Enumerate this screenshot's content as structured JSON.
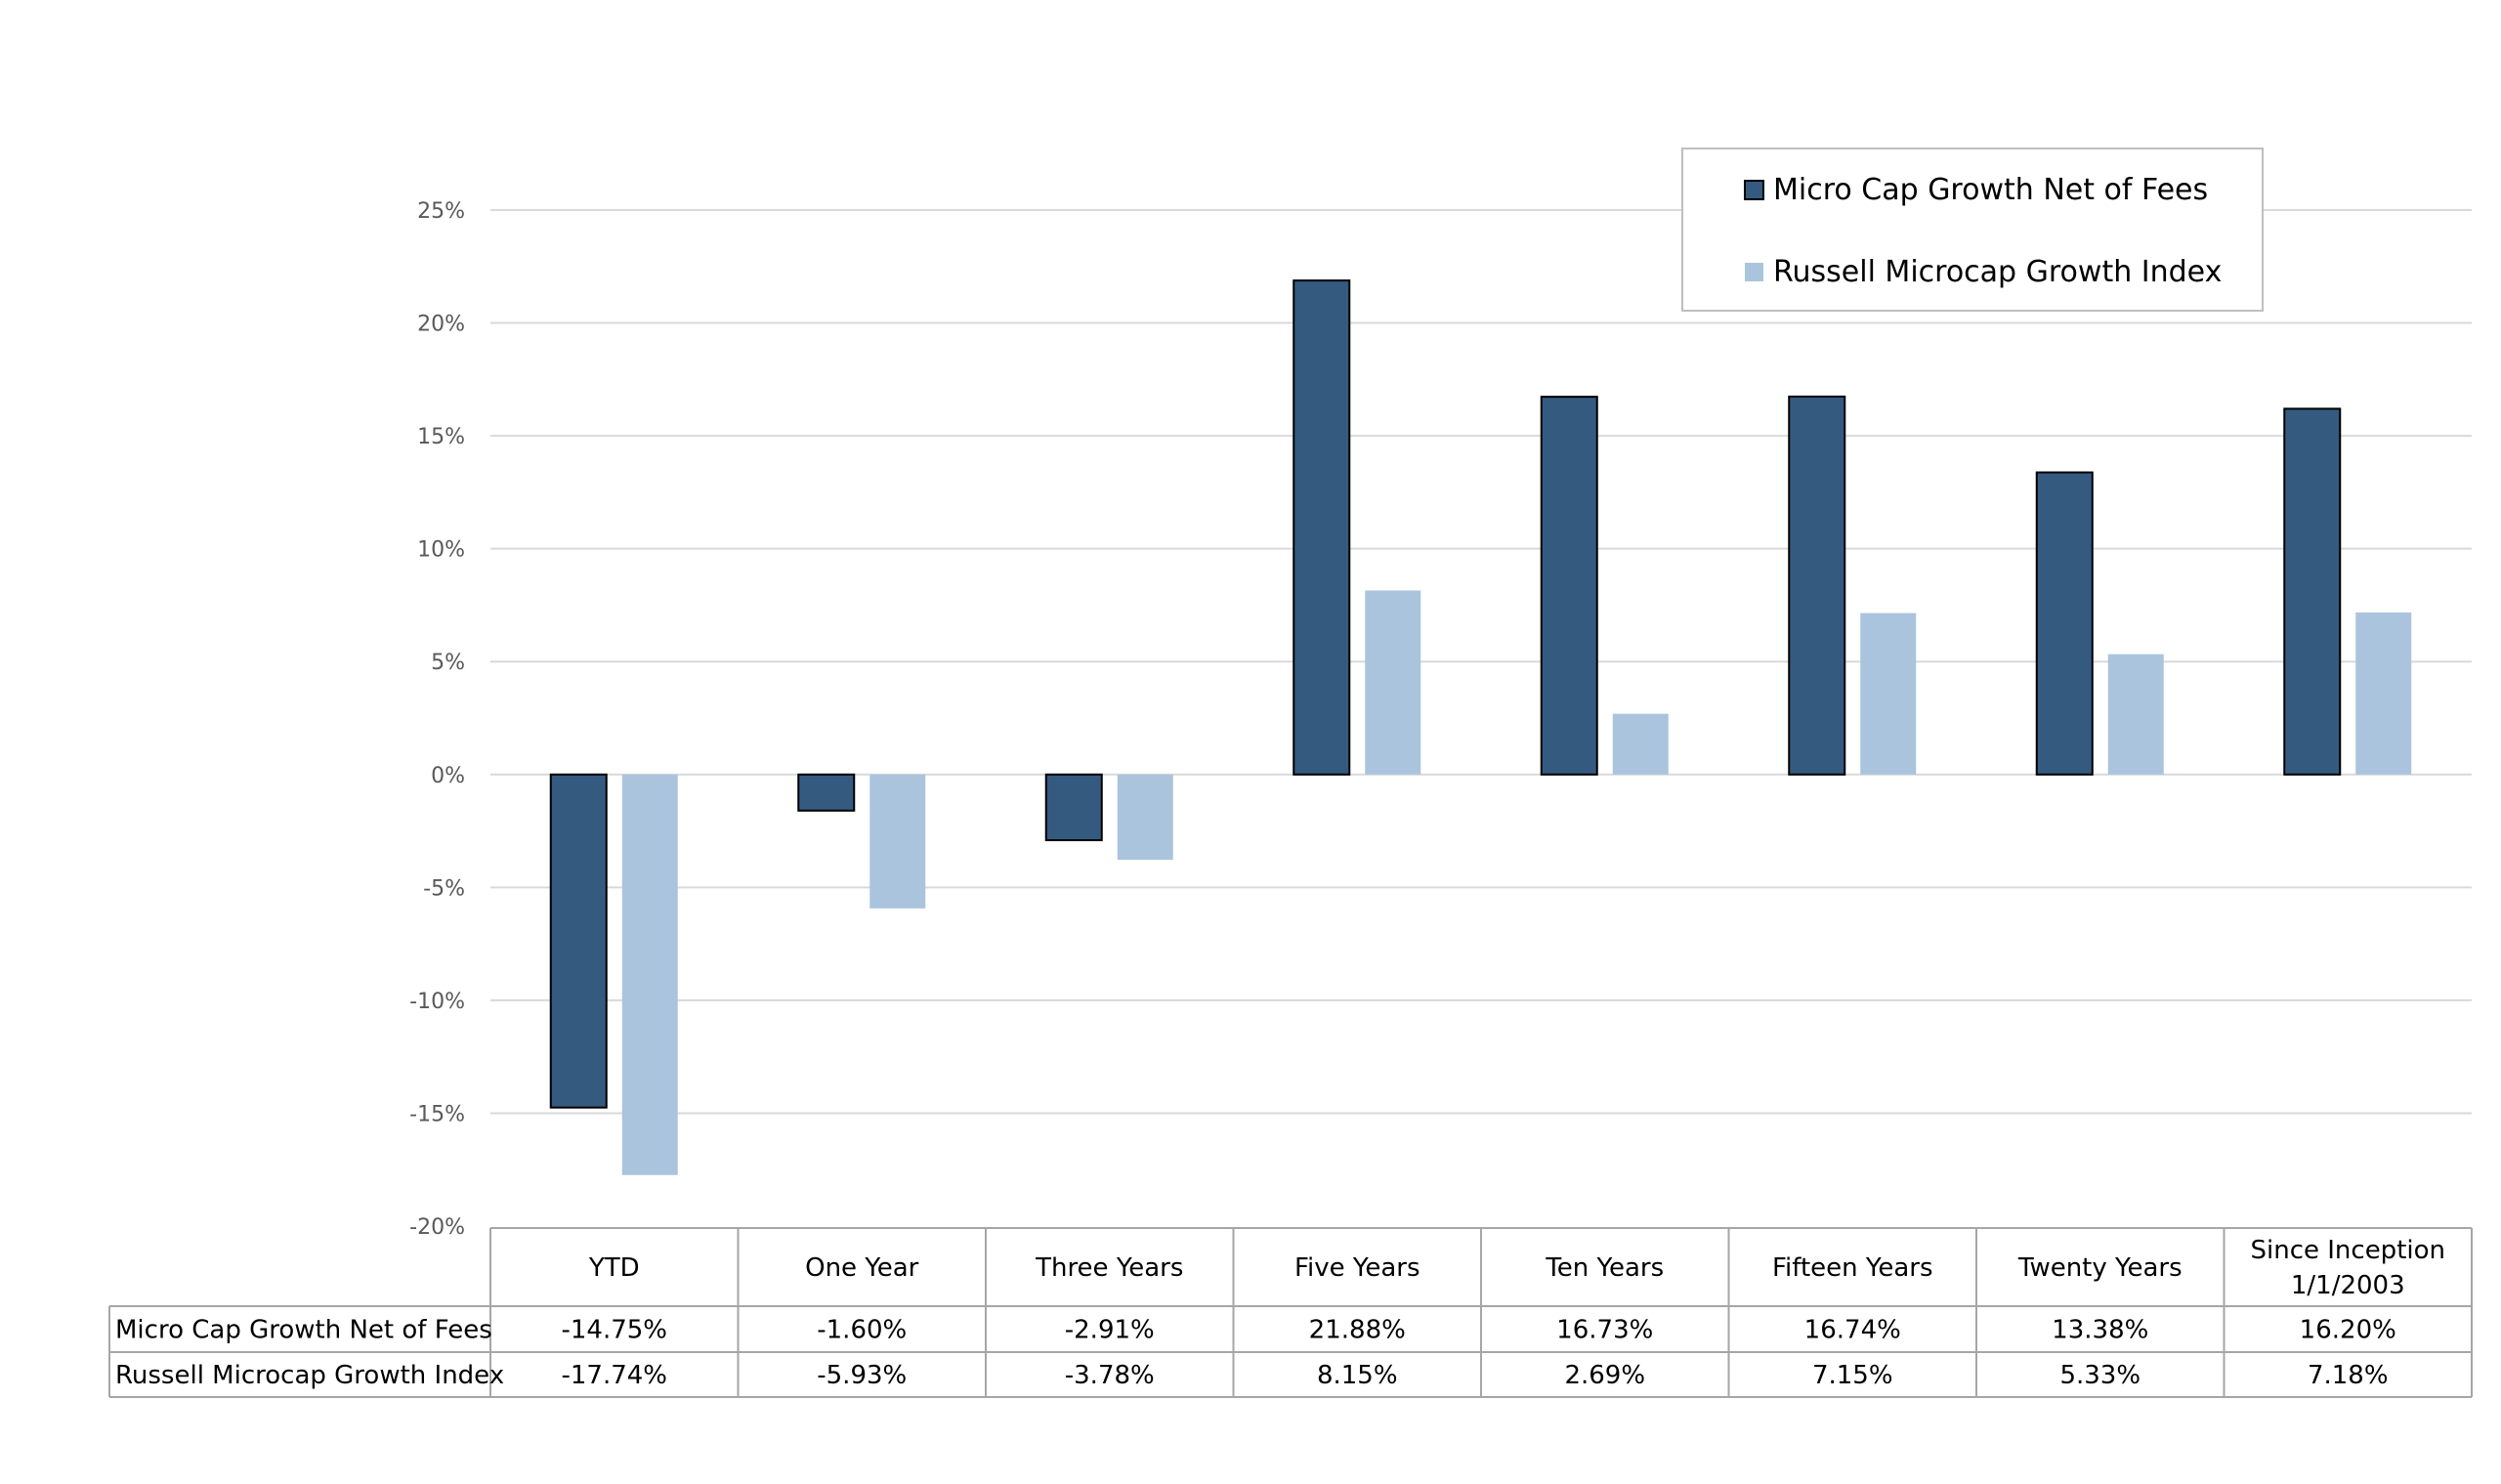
{
  "chart_data": {
    "type": "bar",
    "categories": [
      "YTD",
      "One Year",
      "Three Years",
      "Five Years",
      "Ten Years",
      "Fifteen Years",
      "Twenty Years",
      "Since Inception 1/1/2003"
    ],
    "category_lines": [
      [
        "YTD"
      ],
      [
        "One Year"
      ],
      [
        "Three Years"
      ],
      [
        "Five Years"
      ],
      [
        "Ten Years"
      ],
      [
        "Fifteen Years"
      ],
      [
        "Twenty Years"
      ],
      [
        "Since Inception",
        "1/1/2003"
      ]
    ],
    "series": [
      {
        "name": "Micro Cap Growth Net of Fees",
        "values": [
          -14.75,
          -1.6,
          -2.91,
          21.88,
          16.73,
          16.74,
          13.38,
          16.2
        ],
        "labels": [
          "-14.75%",
          "-1.60%",
          "-2.91%",
          "21.88%",
          "16.73%",
          "16.74%",
          "13.38%",
          "16.20%"
        ],
        "color": "#355a80",
        "outline": "#000000"
      },
      {
        "name": "Russell Microcap Growth Index",
        "values": [
          -17.74,
          -5.93,
          -3.78,
          8.15,
          2.69,
          7.15,
          5.33,
          7.18
        ],
        "labels": [
          "-17.74%",
          "-5.93%",
          "-3.78%",
          "8.15%",
          "2.69%",
          "7.15%",
          "5.33%",
          "7.18%"
        ],
        "color": "#abc4dd",
        "outline": "none"
      }
    ],
    "y_ticks": [
      25,
      20,
      15,
      10,
      5,
      0,
      -5,
      -10,
      -15,
      -20
    ],
    "y_tick_labels": [
      "25%",
      "20%",
      "15%",
      "10%",
      "5%",
      "0%",
      "-5%",
      "-10%",
      "-15%",
      "-20%"
    ],
    "ylim": [
      -20,
      25
    ],
    "grid": true,
    "legend_position": "top-right",
    "data_table": true
  }
}
